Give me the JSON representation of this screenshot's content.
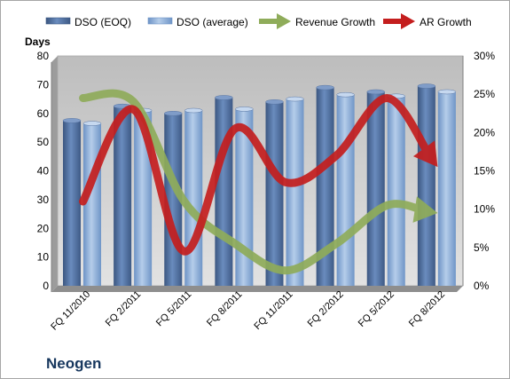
{
  "chart_data": {
    "type": "bar",
    "company": "Neogen",
    "ylabel": "Days",
    "ylim": [
      0,
      80
    ],
    "yticks": [
      "0",
      "10",
      "20",
      "30",
      "40",
      "50",
      "60",
      "70",
      "80"
    ],
    "y2lim": [
      0,
      30
    ],
    "y2ticks": [
      "0%",
      "5%",
      "10%",
      "15%",
      "20%",
      "25%",
      "30%"
    ],
    "categories": [
      "FQ 11/2010",
      "FQ 2/2011",
      "FQ 5/2011",
      "FQ 8/2011",
      "FQ 11/2011",
      "FQ 2/2012",
      "FQ 5/2012",
      "FQ 8/2012"
    ],
    "legend": {
      "placement": "top"
    },
    "grid": false,
    "series": [
      {
        "name": "DSO (EOQ)",
        "type": "bar",
        "axis": "left",
        "color": "#4f6fa0",
        "values": [
          57.5,
          62.5,
          60,
          65.5,
          64,
          69,
          67.5,
          69.5
        ]
      },
      {
        "name": "DSO (average)",
        "type": "bar",
        "axis": "left",
        "color": "#8fb2dd",
        "values": [
          56.5,
          61,
          61,
          61.5,
          65,
          66.5,
          66,
          67.5
        ]
      },
      {
        "name": "Revenue Growth",
        "type": "line",
        "axis": "right",
        "unit": "%",
        "color": "#8fac5a",
        "values": [
          24.5,
          24,
          11,
          5.5,
          2,
          5.5,
          10.5,
          9.5
        ]
      },
      {
        "name": "AR Growth",
        "type": "line",
        "axis": "right",
        "unit": "%",
        "color": "#c41e1e",
        "values": [
          11,
          23,
          4.5,
          20.5,
          13.5,
          17,
          24.5,
          15.5
        ]
      }
    ]
  }
}
